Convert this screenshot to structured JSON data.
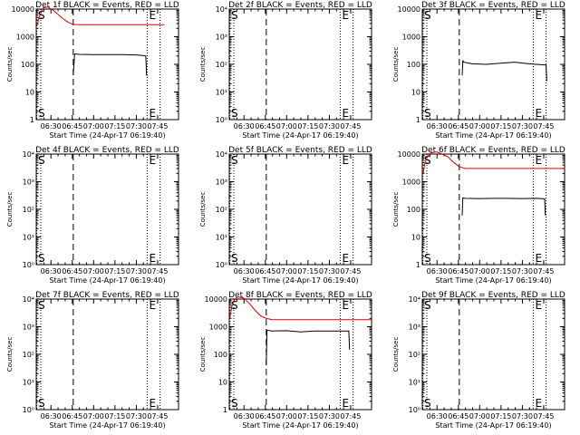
{
  "figure": {
    "tick_labels_log": [
      "1",
      "10",
      "100",
      "1000",
      "10000"
    ],
    "tick_labels_sci": [
      "10⁰",
      "10¹",
      "10²",
      "10³",
      "10⁴"
    ],
    "x_ticks": [
      "06:30",
      "06:45",
      "07:00",
      "07:15",
      "07:30",
      "07:45"
    ],
    "xlabel": "Start Time (24-Apr-17 06:19:40)",
    "ylabel": "Counts/sec",
    "marker_s": "S",
    "marker_e": "E",
    "colors": {
      "events": "#000000",
      "lld": "#e00000"
    }
  },
  "chart_data": [
    {
      "type": "line",
      "title": "Det 1f BLACK = Events, RED = LLD",
      "y_scale": "log",
      "ylim": [
        1,
        10000
      ],
      "tick_style": "log",
      "x_unit": "minutes after 06:19:40",
      "xlim": [
        0,
        100
      ],
      "markers": {
        "S_dotted": 0.4,
        "dashed_1": 26,
        "E_dotted": 78,
        "dotted_2": 87
      },
      "series": [
        {
          "name": "LLD",
          "color": "#e00000",
          "x": [
            0.5,
            2,
            4,
            5,
            8,
            12,
            16,
            20,
            23,
            26,
            30,
            40,
            60,
            80,
            90
          ],
          "values": [
            2400,
            5000,
            9000,
            11000,
            12000,
            9000,
            6000,
            4000,
            3200,
            2800,
            2700,
            2700,
            2700,
            2700,
            2700
          ]
        },
        {
          "name": "Events",
          "color": "#000000",
          "x": [
            26,
            27,
            30,
            40,
            50,
            60,
            70,
            75,
            77,
            77.5,
            78
          ],
          "values": [
            40,
            240,
            230,
            225,
            225,
            225,
            220,
            210,
            200,
            40,
            40
          ]
        }
      ]
    },
    {
      "type": "line",
      "title": "Det 2f BLACK = Events, RED = LLD",
      "y_scale": "log",
      "ylim": [
        1,
        10000
      ],
      "tick_style": "sci",
      "x_unit": "minutes after 06:19:40",
      "xlim": [
        0,
        100
      ],
      "markers": {
        "S_dotted": 0.4,
        "dashed_1": 26,
        "E_dotted": 78,
        "dotted_2": 87
      },
      "series": []
    },
    {
      "type": "line",
      "title": "Det 3f BLACK = Events, RED = LLD",
      "y_scale": "log",
      "ylim": [
        1,
        10000
      ],
      "tick_style": "log",
      "x_unit": "minutes after 06:19:40",
      "xlim": [
        0,
        100
      ],
      "markers": {
        "S_dotted": 0.4,
        "dashed_1": 26,
        "E_dotted": 78,
        "dotted_2": 87
      },
      "series": [
        {
          "name": "Events",
          "color": "#000000",
          "x": [
            28,
            28.5,
            29,
            35,
            45,
            55,
            65,
            75,
            80,
            87,
            87.5
          ],
          "values": [
            40,
            140,
            120,
            105,
            100,
            110,
            120,
            105,
            100,
            95,
            25
          ]
        }
      ]
    },
    {
      "type": "line",
      "title": "Det 4f BLACK = Events, RED = LLD",
      "y_scale": "log",
      "ylim": [
        1,
        10000
      ],
      "tick_style": "sci",
      "x_unit": "minutes after 06:19:40",
      "xlim": [
        0,
        100
      ],
      "markers": {
        "S_dotted": 0.4,
        "dashed_1": 26,
        "E_dotted": 78,
        "dotted_2": 87
      },
      "series": []
    },
    {
      "type": "line",
      "title": "Det 5f BLACK = Events, RED = LLD",
      "y_scale": "log",
      "ylim": [
        1,
        10000
      ],
      "tick_style": "sci",
      "x_unit": "minutes after 06:19:40",
      "xlim": [
        0,
        100
      ],
      "markers": {
        "S_dotted": 0.4,
        "dashed_1": 26,
        "E_dotted": 78,
        "dotted_2": 87
      },
      "series": []
    },
    {
      "type": "line",
      "title": "Det 6f BLACK = Events, RED = LLD",
      "y_scale": "log",
      "ylim": [
        1,
        10000
      ],
      "tick_style": "log",
      "x_unit": "minutes after 06:19:40",
      "xlim": [
        0,
        100
      ],
      "markers": {
        "S_dotted": 0.4,
        "dashed_1": 26,
        "E_dotted": 78,
        "dotted_2": 87
      },
      "series": [
        {
          "name": "LLD",
          "color": "#e00000",
          "x": [
            0.5,
            2,
            4,
            6,
            10,
            14,
            18,
            22,
            26,
            30,
            40,
            60,
            80,
            100
          ],
          "values": [
            2000,
            5000,
            9000,
            11000,
            12000,
            10000,
            8000,
            5000,
            3500,
            3000,
            3000,
            3000,
            3000,
            3000
          ]
        },
        {
          "name": "Events",
          "color": "#000000",
          "x": [
            28,
            28.5,
            30,
            40,
            50,
            60,
            70,
            80,
            86,
            86.5
          ],
          "values": [
            60,
            260,
            250,
            245,
            250,
            250,
            245,
            250,
            240,
            60
          ]
        }
      ]
    },
    {
      "type": "line",
      "title": "Det 7f BLACK = Events, RED = LLD",
      "y_scale": "log",
      "ylim": [
        1,
        10000
      ],
      "tick_style": "sci",
      "x_unit": "minutes after 06:19:40",
      "xlim": [
        0,
        100
      ],
      "markers": {
        "S_dotted": 0.4,
        "dashed_1": 26,
        "E_dotted": 78,
        "dotted_2": 87
      },
      "series": []
    },
    {
      "type": "line",
      "title": "Det 8f BLACK = Events, RED = LLD",
      "y_scale": "log",
      "ylim": [
        1,
        10000
      ],
      "tick_style": "log",
      "x_unit": "minutes after 06:19:40",
      "xlim": [
        0,
        100
      ],
      "markers": {
        "S_dotted": 0.4,
        "dashed_1": 26,
        "E_dotted": 78,
        "dotted_2": 87
      },
      "series": [
        {
          "name": "LLD",
          "color": "#e00000",
          "x": [
            0.3,
            2,
            4,
            6,
            10,
            14,
            18,
            22,
            26,
            30,
            40,
            60,
            80,
            100
          ],
          "values": [
            2000,
            6000,
            10000,
            12000,
            11000,
            7000,
            4000,
            2500,
            2000,
            1800,
            1800,
            1800,
            1800,
            1800
          ]
        },
        {
          "name": "Events",
          "color": "#000000",
          "x": [
            26,
            26.5,
            30,
            40,
            50,
            60,
            70,
            80,
            84,
            84.5
          ],
          "values": [
            40,
            750,
            700,
            720,
            650,
            700,
            700,
            700,
            700,
            150
          ]
        }
      ]
    },
    {
      "type": "line",
      "title": "Det 9f BLACK = Events, RED = LLD",
      "y_scale": "log",
      "ylim": [
        1,
        10000
      ],
      "tick_style": "sci",
      "x_unit": "minutes after 06:19:40",
      "xlim": [
        0,
        100
      ],
      "markers": {
        "S_dotted": 0.4,
        "dashed_1": 26,
        "E_dotted": 78,
        "dotted_2": 87
      },
      "series": []
    }
  ]
}
